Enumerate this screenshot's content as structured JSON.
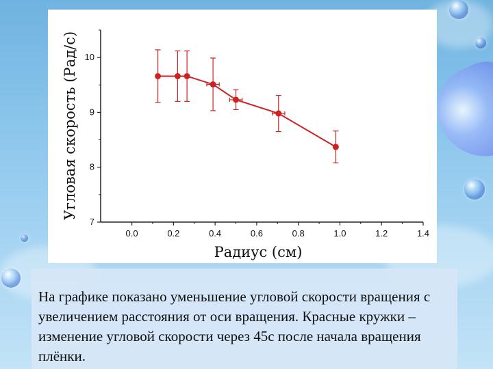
{
  "chart_data": {
    "type": "line",
    "xlabel": "Радиус (см)",
    "ylabel": "Угловая скорость (Рад/с)",
    "xlim": [
      -0.15,
      1.4
    ],
    "ylim": [
      7,
      10.5
    ],
    "x_ticks": [
      "0.0",
      "0.2",
      "0.4",
      "0.6",
      "0.8",
      "1.0",
      "1.2",
      "1.4"
    ],
    "y_ticks": [
      "7",
      "8",
      "9",
      "10"
    ],
    "grid": false,
    "series": [
      {
        "color": "#cc2222",
        "x": [
          0.125,
          0.22,
          0.265,
          0.39,
          0.5,
          0.705,
          0.98
        ],
        "y": [
          9.66,
          9.66,
          9.66,
          9.51,
          9.23,
          8.98,
          8.37
        ],
        "y_err_low": [
          0.48,
          0.46,
          0.46,
          0.48,
          0.18,
          0.33,
          0.29
        ],
        "y_err_high": [
          0.48,
          0.46,
          0.46,
          0.48,
          0.18,
          0.33,
          0.29
        ],
        "x_err": [
          0,
          0,
          0,
          0.03,
          0.03,
          0.03,
          0
        ]
      }
    ]
  },
  "caption": "На графике показано уменьшение угловой скорости вращения с увеличением расстояния от оси вращения. Красные кружки – изменение угловой скорости через 45с после начала вращения плёнки."
}
